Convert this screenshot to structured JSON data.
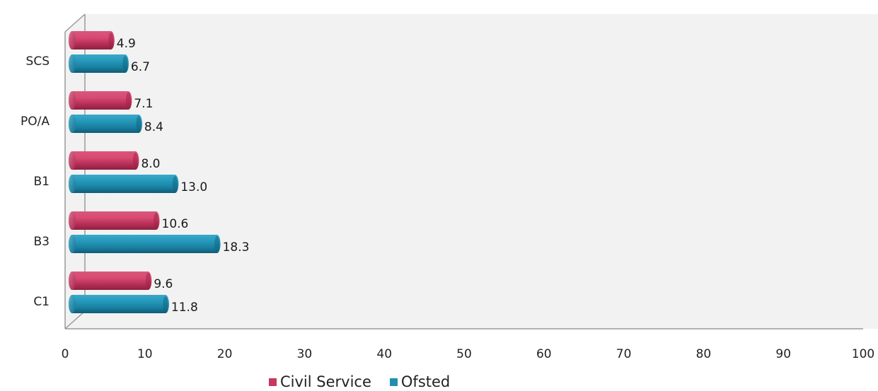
{
  "chart_data": {
    "type": "bar",
    "orientation": "horizontal",
    "categories": [
      "SCS",
      "PO/A",
      "B1",
      "B3",
      "C1"
    ],
    "series": [
      {
        "name": "Civil Service",
        "color": "#c8375f",
        "values": [
          4.9,
          7.1,
          8.0,
          10.6,
          9.6
        ],
        "labels": [
          "4.9",
          "7.1",
          "8.0",
          "10.6",
          "9.6"
        ]
      },
      {
        "name": "Ofsted",
        "color": "#1f8fb0",
        "values": [
          6.7,
          8.4,
          13.0,
          18.3,
          11.8
        ],
        "labels": [
          "6.7",
          "8.4",
          "13.0",
          "18.3",
          "11.8"
        ]
      }
    ],
    "xlim": [
      0,
      100
    ],
    "xticks": [
      "0",
      "10",
      "20",
      "30",
      "40",
      "50",
      "60",
      "70",
      "80",
      "90",
      "100"
    ],
    "style": "3d-cylinder",
    "grid": false,
    "legend_position": "bottom"
  }
}
